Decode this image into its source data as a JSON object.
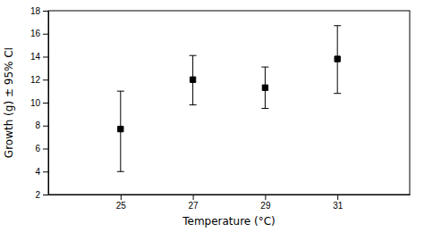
{
  "chart_data": {
    "type": "scatter",
    "x_label": "Temperature (°C)",
    "y_label": "Growth (g) ± 95% CI",
    "x": [
      25,
      27,
      29,
      31
    ],
    "values": [
      7.7,
      12.0,
      11.3,
      13.8
    ],
    "lower": [
      4.0,
      9.8,
      9.5,
      10.8
    ],
    "upper": [
      11.0,
      14.1,
      13.1,
      16.7
    ],
    "color": "#000000",
    "marker": "square",
    "xlim": [
      23.0,
      33.0
    ],
    "ylim": [
      2,
      18
    ],
    "xticks": [
      25,
      27,
      29,
      31
    ],
    "yticks": [
      2,
      4,
      6,
      8,
      10,
      12,
      14,
      16,
      18
    ],
    "grid": false
  }
}
